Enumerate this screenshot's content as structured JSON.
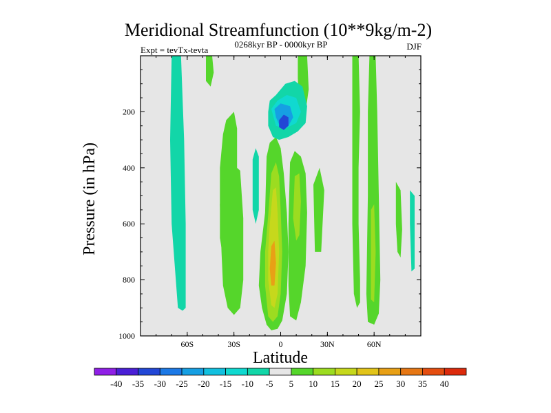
{
  "chart_data": {
    "type": "heatmap",
    "title": "Meridional Streamfunction (10**9kg/m-2)",
    "left_string": "Expt = tevTx-tevta",
    "center_string": "0268kyr BP - 0000kyr BP",
    "right_string": "DJF",
    "xlabel": "Latitude",
    "ylabel": "Pressure (in hPa)",
    "xlim": [
      -90,
      90
    ],
    "ylim": [
      0,
      1000
    ],
    "y_inverted": true,
    "xticks": [
      {
        "value": -60,
        "label": "60S"
      },
      {
        "value": -30,
        "label": "30S"
      },
      {
        "value": 0,
        "label": "0"
      },
      {
        "value": 30,
        "label": "30N"
      },
      {
        "value": 60,
        "label": "60N"
      }
    ],
    "yticks": [
      {
        "value": 200,
        "label": "200"
      },
      {
        "value": 400,
        "label": "400"
      },
      {
        "value": 600,
        "label": "600"
      },
      {
        "value": 800,
        "label": "800"
      },
      {
        "value": 1000,
        "label": "1000"
      }
    ],
    "background_color": "#e6e6e6",
    "colorbar": {
      "labels": [
        "-40",
        "-35",
        "-30",
        "-25",
        "-20",
        "-15",
        "-10",
        "-5",
        "5",
        "10",
        "15",
        "20",
        "25",
        "30",
        "35",
        "40"
      ],
      "colors": [
        "#8f1fe6",
        "#4a1fd6",
        "#2247d6",
        "#1c79e6",
        "#169fe3",
        "#12c0df",
        "#10d9d0",
        "#12d6a8",
        "#e6e6e6",
        "#55d62b",
        "#9cdc20",
        "#c6d81c",
        "#e2c419",
        "#e8a016",
        "#e67714",
        "#e44d10",
        "#dc2a0c"
      ]
    },
    "regions": [
      {
        "name": "cyan-col-60s",
        "value": -7,
        "points": [
          [
            -70,
            0
          ],
          [
            -64,
            0
          ],
          [
            -62,
            300
          ],
          [
            -61,
            600
          ],
          [
            -61,
            900
          ],
          [
            -63,
            910
          ],
          [
            -66,
            900
          ],
          [
            -70,
            600
          ],
          [
            -71,
            300
          ]
        ]
      },
      {
        "name": "cyan-col-62s",
        "value": -7,
        "points": [
          [
            -66,
            700
          ],
          [
            -63,
            690
          ],
          [
            -62,
            850
          ],
          [
            -64,
            880
          ],
          [
            -66,
            850
          ]
        ]
      },
      {
        "name": "green-blob-80s",
        "value": 7,
        "points": [
          [
            -48,
            0
          ],
          [
            -44,
            0
          ],
          [
            -43,
            60
          ],
          [
            -45,
            110
          ],
          [
            -48,
            90
          ]
        ]
      },
      {
        "name": "green-col-30s",
        "value": 7,
        "points": [
          [
            -35,
            230
          ],
          [
            -30,
            200
          ],
          [
            -28,
            260
          ],
          [
            -28,
            550
          ],
          [
            -33,
            700
          ],
          [
            -37,
            720
          ],
          [
            -39,
            650
          ],
          [
            -39,
            400
          ],
          [
            -37,
            280
          ]
        ]
      },
      {
        "name": "green-col-38s",
        "value": 7,
        "points": [
          [
            -39,
            530
          ],
          [
            -36,
            420
          ],
          [
            -32,
            380
          ],
          [
            -26,
            410
          ],
          [
            -24,
            580
          ],
          [
            -24,
            800
          ],
          [
            -26,
            900
          ],
          [
            -30,
            925
          ],
          [
            -34,
            900
          ],
          [
            -37,
            820
          ],
          [
            -38,
            700
          ]
        ]
      },
      {
        "name": "cyan-col-15s",
        "value": -7,
        "points": [
          [
            -18,
            370
          ],
          [
            -16,
            330
          ],
          [
            -14,
            360
          ],
          [
            -14,
            550
          ],
          [
            -16,
            600
          ],
          [
            -18,
            550
          ]
        ]
      },
      {
        "name": "green-main-eq",
        "value": 7,
        "points": [
          [
            -10,
            560
          ],
          [
            -9,
            360
          ],
          [
            -7,
            310
          ],
          [
            -3,
            290
          ],
          [
            0,
            330
          ],
          [
            2,
            420
          ],
          [
            4,
            560
          ],
          [
            5,
            700
          ],
          [
            4,
            850
          ],
          [
            1,
            945
          ],
          [
            -2,
            975
          ],
          [
            -6,
            980
          ],
          [
            -9,
            960
          ],
          [
            -12,
            900
          ],
          [
            -14,
            820
          ],
          [
            -13,
            700
          ]
        ]
      },
      {
        "name": "yellow-main-eq",
        "value": 12,
        "points": [
          [
            -8,
            570
          ],
          [
            -6,
            420
          ],
          [
            -3,
            380
          ],
          [
            -1,
            430
          ],
          [
            0,
            550
          ],
          [
            1,
            700
          ],
          [
            0,
            850
          ],
          [
            -2,
            930
          ],
          [
            -5,
            950
          ],
          [
            -8,
            930
          ],
          [
            -10,
            820
          ],
          [
            -10,
            700
          ]
        ]
      },
      {
        "name": "orange-main-eq",
        "value": 18,
        "points": [
          [
            -7,
            600
          ],
          [
            -5,
            480
          ],
          [
            -3,
            470
          ],
          [
            -2,
            560
          ],
          [
            -1,
            700
          ],
          [
            -2,
            850
          ],
          [
            -4,
            900
          ],
          [
            -6,
            890
          ],
          [
            -8,
            800
          ],
          [
            -8,
            700
          ]
        ]
      },
      {
        "name": "red-core-eq",
        "value": 27,
        "points": [
          [
            -6,
            680
          ],
          [
            -4,
            660
          ],
          [
            -3,
            740
          ],
          [
            -4,
            820
          ],
          [
            -6,
            820
          ],
          [
            -7,
            760
          ]
        ]
      },
      {
        "name": "green-blob-10n",
        "value": 7,
        "points": [
          [
            6,
            380
          ],
          [
            9,
            340
          ],
          [
            13,
            360
          ],
          [
            16,
            420
          ],
          [
            17,
            560
          ],
          [
            16,
            750
          ],
          [
            13,
            880
          ],
          [
            10,
            945
          ],
          [
            6,
            930
          ],
          [
            5,
            820
          ],
          [
            5,
            600
          ]
        ]
      },
      {
        "name": "yellow-blob-10n",
        "value": 12,
        "points": [
          [
            9,
            430
          ],
          [
            12,
            420
          ],
          [
            13,
            520
          ],
          [
            12,
            640
          ],
          [
            10,
            660
          ],
          [
            8,
            580
          ]
        ]
      },
      {
        "name": "green-fringe-20n",
        "value": 7,
        "points": [
          [
            21,
            460
          ],
          [
            25,
            400
          ],
          [
            28,
            480
          ],
          [
            26,
            700
          ],
          [
            22,
            700
          ]
        ]
      },
      {
        "name": "green-col-15n",
        "value": 7,
        "points": [
          [
            11,
            0
          ],
          [
            17,
            0
          ],
          [
            18,
            120
          ],
          [
            16,
            200
          ],
          [
            12,
            180
          ],
          [
            11,
            80
          ]
        ]
      },
      {
        "name": "blue-upper-outer",
        "value": -7,
        "points": [
          [
            -8,
            200
          ],
          [
            -7,
            160
          ],
          [
            -3,
            140
          ],
          [
            3,
            100
          ],
          [
            9,
            90
          ],
          [
            14,
            110
          ],
          [
            17,
            180
          ],
          [
            16,
            240
          ],
          [
            11,
            270
          ],
          [
            5,
            290
          ],
          [
            -1,
            300
          ],
          [
            -5,
            290
          ],
          [
            -8,
            250
          ]
        ]
      },
      {
        "name": "blue-upper-mid",
        "value": -15,
        "points": [
          [
            -6,
            190
          ],
          [
            -2,
            160
          ],
          [
            4,
            140
          ],
          [
            10,
            150
          ],
          [
            13,
            200
          ],
          [
            10,
            240
          ],
          [
            3,
            260
          ],
          [
            -3,
            250
          ]
        ]
      },
      {
        "name": "blue-upper-inner",
        "value": -25,
        "points": [
          [
            -4,
            190
          ],
          [
            0,
            170
          ],
          [
            6,
            180
          ],
          [
            8,
            220
          ],
          [
            5,
            250
          ],
          [
            -1,
            245
          ],
          [
            -3,
            220
          ]
        ]
      },
      {
        "name": "blue-core",
        "value": -33,
        "points": [
          [
            -1,
            230
          ],
          [
            2,
            210
          ],
          [
            5,
            220
          ],
          [
            5,
            250
          ],
          [
            2,
            265
          ],
          [
            -1,
            255
          ]
        ]
      },
      {
        "name": "green-col-50n",
        "value": 7,
        "points": [
          [
            46,
            0
          ],
          [
            50,
            0
          ],
          [
            51,
            200
          ],
          [
            50,
            400
          ],
          [
            50,
            600
          ],
          [
            51,
            800
          ],
          [
            51,
            880
          ],
          [
            49,
            900
          ],
          [
            47,
            850
          ],
          [
            46,
            600
          ]
        ]
      },
      {
        "name": "green-col-60n",
        "value": 7,
        "points": [
          [
            57,
            0
          ],
          [
            61,
            0
          ],
          [
            62,
            200
          ],
          [
            63,
            500
          ],
          [
            64,
            800
          ],
          [
            63,
            920
          ],
          [
            60,
            960
          ],
          [
            56,
            950
          ],
          [
            55,
            850
          ],
          [
            56,
            500
          ],
          [
            56,
            200
          ]
        ]
      },
      {
        "name": "yellow-col-60n",
        "value": 12,
        "points": [
          [
            58,
            550
          ],
          [
            60,
            530
          ],
          [
            61,
            700
          ],
          [
            60,
            880
          ],
          [
            58,
            870
          ]
        ]
      },
      {
        "name": "green-col-72n",
        "value": 7,
        "points": [
          [
            74,
            450
          ],
          [
            77,
            480
          ],
          [
            78,
            620
          ],
          [
            77,
            720
          ],
          [
            75,
            700
          ],
          [
            74,
            600
          ]
        ]
      },
      {
        "name": "cyan-col-86n",
        "value": -7,
        "points": [
          [
            83,
            480
          ],
          [
            86,
            500
          ],
          [
            86,
            760
          ],
          [
            84,
            770
          ],
          [
            83,
            600
          ]
        ]
      }
    ]
  }
}
